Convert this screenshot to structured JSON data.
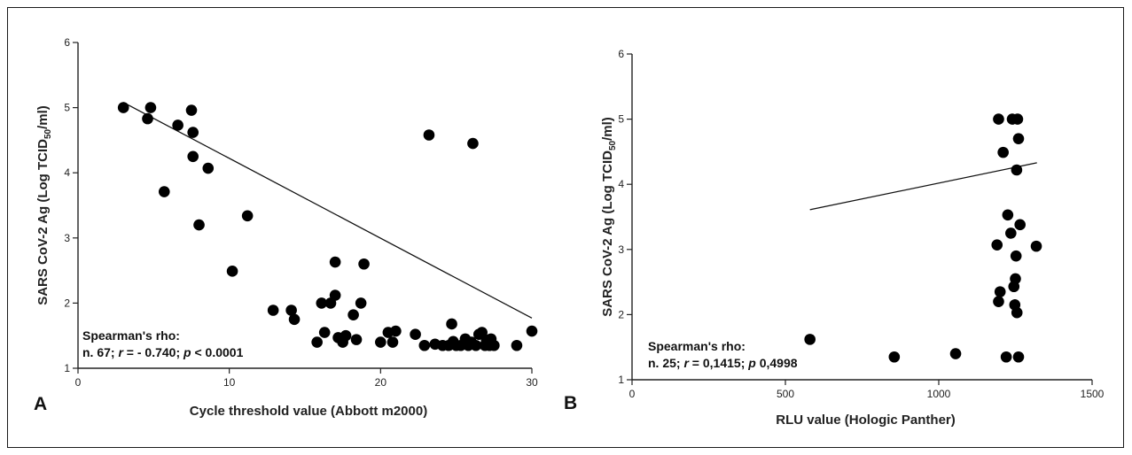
{
  "chart_data": [
    {
      "type": "scatter",
      "panel_label": "A",
      "xlabel": "Cycle threshold value (Abbott m2000)",
      "ylabel_parts": [
        "SARS CoV-2 Ag (Log TCID",
        "50",
        "/ml)"
      ],
      "xlim": [
        0,
        30
      ],
      "ylim": [
        1,
        6
      ],
      "xticks": [
        0,
        10,
        20,
        30
      ],
      "yticks": [
        1,
        2,
        3,
        4,
        5,
        6
      ],
      "annotation": {
        "line1": "Spearman's rho:",
        "line2": [
          {
            "t": "n. 67; "
          },
          {
            "t": "r",
            "i": true
          },
          {
            "t": " = - 0.740; "
          },
          {
            "t": "p",
            "i": true
          },
          {
            "t": " < 0.0001"
          }
        ]
      },
      "fit_line": {
        "x1": 3,
        "y1": 5.08,
        "x2": 30,
        "y2": 1.77
      },
      "points": [
        [
          3,
          5.0
        ],
        [
          4.6,
          4.83
        ],
        [
          4.8,
          5.0
        ],
        [
          5.7,
          3.71
        ],
        [
          6.6,
          4.73
        ],
        [
          7.5,
          4.96
        ],
        [
          7.6,
          4.62
        ],
        [
          7.6,
          4.25
        ],
        [
          8.0,
          3.2
        ],
        [
          8.6,
          4.07
        ],
        [
          10.2,
          2.49
        ],
        [
          11.2,
          3.34
        ],
        [
          12.9,
          1.89
        ],
        [
          14.1,
          1.89
        ],
        [
          14.3,
          1.75
        ],
        [
          15.8,
          1.4
        ],
        [
          16.1,
          2.0
        ],
        [
          16.3,
          1.55
        ],
        [
          16.7,
          2.0
        ],
        [
          17.0,
          2.63
        ],
        [
          17.0,
          2.12
        ],
        [
          17.2,
          1.47
        ],
        [
          17.5,
          1.4
        ],
        [
          17.7,
          1.5
        ],
        [
          18.2,
          1.82
        ],
        [
          18.4,
          1.44
        ],
        [
          18.7,
          2.0
        ],
        [
          18.9,
          2.6
        ],
        [
          20.0,
          1.4
        ],
        [
          20.5,
          1.55
        ],
        [
          20.8,
          1.4
        ],
        [
          21.0,
          1.57
        ],
        [
          22.3,
          1.52
        ],
        [
          22.9,
          1.35
        ],
        [
          23.2,
          4.58
        ],
        [
          23.6,
          1.37
        ],
        [
          24.1,
          1.35
        ],
        [
          24.5,
          1.35
        ],
        [
          24.7,
          1.68
        ],
        [
          24.8,
          1.41
        ],
        [
          25.0,
          1.35
        ],
        [
          25.3,
          1.35
        ],
        [
          25.6,
          1.45
        ],
        [
          25.8,
          1.35
        ],
        [
          26.0,
          1.4
        ],
        [
          26.1,
          4.45
        ],
        [
          26.3,
          1.35
        ],
        [
          26.5,
          1.52
        ],
        [
          26.7,
          1.55
        ],
        [
          26.9,
          1.35
        ],
        [
          27.0,
          1.43
        ],
        [
          27.2,
          1.35
        ],
        [
          27.3,
          1.45
        ],
        [
          27.5,
          1.35
        ],
        [
          29.0,
          1.35
        ],
        [
          30.0,
          1.57
        ]
      ]
    },
    {
      "type": "scatter",
      "panel_label": "B",
      "xlabel": "RLU value (Hologic Panther)",
      "ylabel_parts": [
        "SARS CoV-2 Ag (Log TCID",
        "50",
        "/ml)"
      ],
      "xlim": [
        0,
        1500
      ],
      "ylim": [
        1,
        6
      ],
      "xticks": [
        0,
        500,
        1000,
        1500
      ],
      "yticks": [
        1,
        2,
        3,
        4,
        5,
        6
      ],
      "annotation": {
        "line1": "Spearman's rho:",
        "line2": [
          {
            "t": "n. 25; "
          },
          {
            "t": "r",
            "i": true
          },
          {
            "t": " = 0,1415; "
          },
          {
            "t": "p",
            "i": true
          },
          {
            "t": " 0,4998"
          }
        ]
      },
      "fit_line": {
        "x1": 580,
        "y1": 3.61,
        "x2": 1320,
        "y2": 4.33
      },
      "points": [
        [
          580,
          1.62
        ],
        [
          855,
          1.35
        ],
        [
          1055,
          1.4
        ],
        [
          1195,
          5.0
        ],
        [
          1190,
          3.07
        ],
        [
          1200,
          2.35
        ],
        [
          1195,
          2.2
        ],
        [
          1210,
          4.49
        ],
        [
          1220,
          1.35
        ],
        [
          1225,
          3.53
        ],
        [
          1235,
          3.25
        ],
        [
          1240,
          5.0
        ],
        [
          1245,
          2.43
        ],
        [
          1248,
          2.15
        ],
        [
          1250,
          2.55
        ],
        [
          1252,
          2.9
        ],
        [
          1254,
          4.22
        ],
        [
          1255,
          2.03
        ],
        [
          1257,
          5.0
        ],
        [
          1260,
          4.7
        ],
        [
          1260,
          1.35
        ],
        [
          1265,
          3.38
        ],
        [
          1318,
          3.05
        ]
      ]
    }
  ]
}
